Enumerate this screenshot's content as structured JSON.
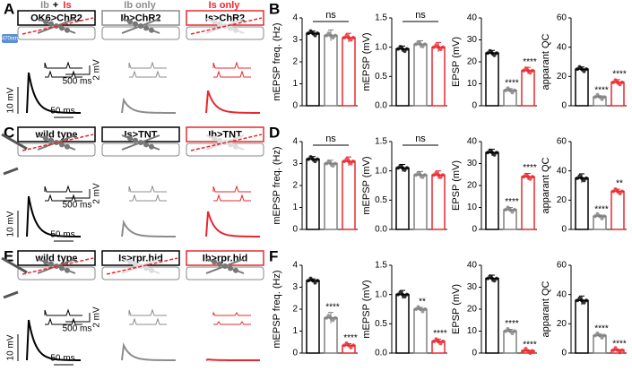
{
  "left_panels": [
    {
      "letter": "A",
      "header": [
        "Ib",
        "+",
        "Is",
        "Ib only",
        "Is only"
      ],
      "boxes": [
        "OK6>ChR2",
        "Ib>ChR2",
        "Is>ChR2"
      ],
      "stim": "470nm",
      "scale": [
        "2 mV",
        "500 ms",
        "10 mV",
        "50 ms"
      ]
    },
    {
      "letter": "C",
      "boxes": [
        "wild type",
        "Is>TNT",
        "Ib>TNT"
      ],
      "scale": [
        "2 mV",
        "500 ms",
        "10 mV",
        "50 ms"
      ]
    },
    {
      "letter": "E",
      "boxes": [
        "wild type",
        "Is>rpr.hid",
        "Ib>rpr.hid"
      ],
      "scale": [
        "2 mV",
        "500 ms",
        "10 mV",
        "50 ms"
      ]
    }
  ],
  "right_panels": [
    "B",
    "D",
    "F"
  ],
  "chart_data": [
    {
      "type": "bar",
      "ylabel": "mEPSP freq. (Hz)",
      "values": [
        3.3,
        3.2,
        3.1
      ],
      "errors": [
        0.1,
        0.25,
        0.2
      ],
      "colors": [
        "#000000",
        "#808080",
        "#e8282e"
      ],
      "ylim": [
        0,
        4
      ],
      "yticks": [
        0,
        1,
        2,
        3,
        4
      ],
      "bracket": "ns"
    },
    {
      "type": "bar",
      "ylabel": "mEPSP (mV)",
      "values": [
        0.97,
        1.05,
        1.0
      ],
      "errors": [
        0.05,
        0.06,
        0.08
      ],
      "colors": [
        "#000000",
        "#808080",
        "#e8282e"
      ],
      "ylim": [
        0,
        1.5
      ],
      "yticks": [
        {
          "value": 0,
          "label": "0.0"
        },
        {
          "value": 0.5,
          "label": "0.5"
        },
        {
          "value": 1,
          "label": "1.0"
        },
        {
          "value": 1.5,
          "label": "1.5"
        }
      ],
      "bracket": "ns"
    },
    {
      "type": "bar",
      "ylabel": "EPSP (mV)",
      "values": [
        24,
        7,
        16
      ],
      "errors": [
        1.2,
        0.8,
        1.5
      ],
      "colors": [
        "#000000",
        "#808080",
        "#e8282e"
      ],
      "ylim": [
        0,
        40
      ],
      "yticks": [
        0,
        10,
        20,
        30,
        40
      ],
      "stars": [
        null,
        "****",
        "****"
      ]
    },
    {
      "type": "bar",
      "ylabel": "apparant QC",
      "values": [
        25,
        6,
        16
      ],
      "errors": [
        1.5,
        0.8,
        1.8
      ],
      "colors": [
        "#000000",
        "#808080",
        "#e8282e"
      ],
      "ylim": [
        0,
        60
      ],
      "yticks": [
        0,
        20,
        40,
        60
      ],
      "stars": [
        null,
        "****",
        "****"
      ]
    },
    {
      "type": "bar",
      "ylabel": "mEPSP freq. (Hz)",
      "values": [
        3.2,
        3.0,
        3.1
      ],
      "errors": [
        0.12,
        0.15,
        0.2
      ],
      "colors": [
        "#000000",
        "#808080",
        "#e8282e"
      ],
      "ylim": [
        0,
        4
      ],
      "yticks": [
        0,
        1,
        2,
        3,
        4
      ],
      "bracket": "ns"
    },
    {
      "type": "bar",
      "ylabel": "mEPSP (mV)",
      "values": [
        1.05,
        0.93,
        0.93
      ],
      "errors": [
        0.06,
        0.06,
        0.07
      ],
      "colors": [
        "#000000",
        "#808080",
        "#e8282e"
      ],
      "ylim": [
        0,
        1.5
      ],
      "yticks": [
        {
          "value": 0,
          "label": "0.0"
        },
        {
          "value": 0.5,
          "label": "0.5"
        },
        {
          "value": 1,
          "label": "1.0"
        },
        {
          "value": 1.5,
          "label": "1.5"
        }
      ],
      "bracket": "ns"
    },
    {
      "type": "bar",
      "ylabel": "EPSP (mV)",
      "values": [
        35,
        9,
        24
      ],
      "errors": [
        1.5,
        1,
        1.5
      ],
      "colors": [
        "#000000",
        "#808080",
        "#e8282e"
      ],
      "ylim": [
        0,
        40
      ],
      "yticks": [
        0,
        10,
        20,
        30,
        40
      ],
      "stars": [
        null,
        "****",
        "****"
      ]
    },
    {
      "type": "bar",
      "ylabel": "apparant QC",
      "values": [
        35,
        9,
        26
      ],
      "errors": [
        3,
        0.8,
        1.5
      ],
      "colors": [
        "#000000",
        "#808080",
        "#e8282e"
      ],
      "ylim": [
        0,
        60
      ],
      "yticks": [
        0,
        20,
        40,
        60
      ],
      "stars": [
        null,
        "****",
        "**"
      ]
    },
    {
      "type": "bar",
      "ylabel": "mEPSP freq. (Hz)",
      "values": [
        3.3,
        1.6,
        0.35
      ],
      "errors": [
        0.08,
        0.25,
        0.08
      ],
      "colors": [
        "#000000",
        "#808080",
        "#e8282e"
      ],
      "ylim": [
        0,
        4
      ],
      "yticks": [
        0,
        1,
        2,
        3,
        4
      ],
      "stars": [
        null,
        "****",
        "****"
      ]
    },
    {
      "type": "bar",
      "ylabel": "mEPSP (mV)",
      "values": [
        1.0,
        0.75,
        0.2
      ],
      "errors": [
        0.07,
        0.03,
        0.04
      ],
      "colors": [
        "#000000",
        "#808080",
        "#e8282e"
      ],
      "ylim": [
        0,
        1.5
      ],
      "yticks": [
        {
          "value": 0,
          "label": "0.0"
        },
        {
          "value": 0.5,
          "label": "0.5"
        },
        {
          "value": 1,
          "label": "1.0"
        },
        {
          "value": 1.5,
          "label": "1.5"
        }
      ],
      "stars": [
        null,
        "**",
        "****"
      ]
    },
    {
      "type": "bar",
      "ylabel": "EPSP (mV)",
      "values": [
        34,
        10,
        1
      ],
      "errors": [
        1.5,
        0.8,
        0.3
      ],
      "colors": [
        "#000000",
        "#808080",
        "#e8282e"
      ],
      "ylim": [
        0,
        40
      ],
      "yticks": [
        0,
        10,
        20,
        30,
        40
      ],
      "stars": [
        null,
        "****",
        "****"
      ]
    },
    {
      "type": "bar",
      "ylabel": "apparant QC",
      "values": [
        36,
        12,
        2
      ],
      "errors": [
        3,
        1,
        0.5
      ],
      "colors": [
        "#000000",
        "#808080",
        "#e8282e"
      ],
      "ylim": [
        0,
        60
      ],
      "yticks": [
        0,
        20,
        40,
        60
      ],
      "stars": [
        null,
        "****",
        "****"
      ]
    }
  ]
}
